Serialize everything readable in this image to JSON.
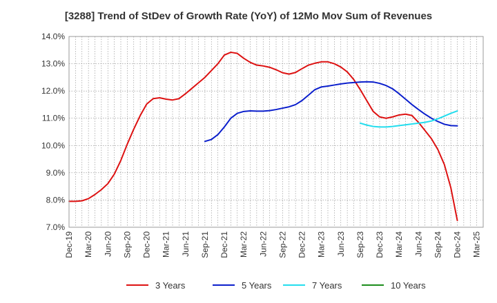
{
  "chart_data": {
    "type": "line",
    "title": "[3288]  Trend of StDev of Growth Rate (YoY) of 12Mo Mov Sum of Revenues",
    "xlabel": "",
    "ylabel": "",
    "ylim": [
      7.0,
      14.0
    ],
    "yticks": [
      7.0,
      8.0,
      9.0,
      10.0,
      11.0,
      12.0,
      13.0,
      14.0
    ],
    "ytick_labels": [
      "7.0%",
      "8.0%",
      "9.0%",
      "10.0%",
      "11.0%",
      "12.0%",
      "13.0%",
      "14.0%"
    ],
    "xtick_labels": [
      "Dec-19",
      "Mar-20",
      "Jun-20",
      "Sep-20",
      "Dec-20",
      "Mar-21",
      "Jun-21",
      "Sep-21",
      "Dec-21",
      "Mar-22",
      "Jun-22",
      "Sep-22",
      "Dec-22",
      "Mar-23",
      "Jun-23",
      "Sep-23",
      "Dec-23",
      "Mar-24",
      "Jun-24",
      "Sep-24",
      "Dec-24",
      "Mar-25"
    ],
    "month_count": 64,
    "grid": true,
    "legend_position": "bottom",
    "series": [
      {
        "name": "3 Years",
        "color": "#dd1111",
        "start_index": 0,
        "values": [
          7.95,
          7.95,
          7.97,
          8.05,
          8.2,
          8.38,
          8.6,
          8.95,
          9.45,
          10.05,
          10.6,
          11.1,
          11.52,
          11.72,
          11.75,
          11.7,
          11.67,
          11.72,
          11.9,
          12.1,
          12.3,
          12.5,
          12.75,
          13.0,
          13.32,
          13.42,
          13.38,
          13.2,
          13.05,
          12.95,
          12.92,
          12.87,
          12.78,
          12.67,
          12.62,
          12.68,
          12.82,
          12.95,
          13.02,
          13.07,
          13.07,
          13.0,
          12.88,
          12.7,
          12.42,
          12.05,
          11.65,
          11.25,
          11.05,
          11.0,
          11.05,
          11.12,
          11.15,
          11.1,
          10.85,
          10.55,
          10.25,
          9.85,
          9.3,
          8.45,
          7.25
        ]
      },
      {
        "name": "5 Years",
        "color": "#0a1ecc",
        "start_index": 21,
        "values": [
          10.15,
          10.22,
          10.4,
          10.68,
          11.0,
          11.18,
          11.25,
          11.27,
          11.26,
          11.26,
          11.28,
          11.32,
          11.37,
          11.42,
          11.5,
          11.65,
          11.85,
          12.05,
          12.15,
          12.18,
          12.22,
          12.26,
          12.29,
          12.31,
          12.33,
          12.34,
          12.33,
          12.28,
          12.2,
          12.08,
          11.9,
          11.7,
          11.5,
          11.32,
          11.15,
          11.0,
          10.88,
          10.78,
          10.73,
          10.72
        ]
      },
      {
        "name": "7 Years",
        "color": "#22ddee",
        "start_index": 45,
        "values": [
          10.82,
          10.75,
          10.7,
          10.68,
          10.68,
          10.7,
          10.73,
          10.76,
          10.79,
          10.82,
          10.85,
          10.9,
          10.98,
          11.08,
          11.18,
          11.27
        ]
      },
      {
        "name": "10 Years",
        "color": "#1a8c1a",
        "start_index": null,
        "values": []
      }
    ]
  }
}
